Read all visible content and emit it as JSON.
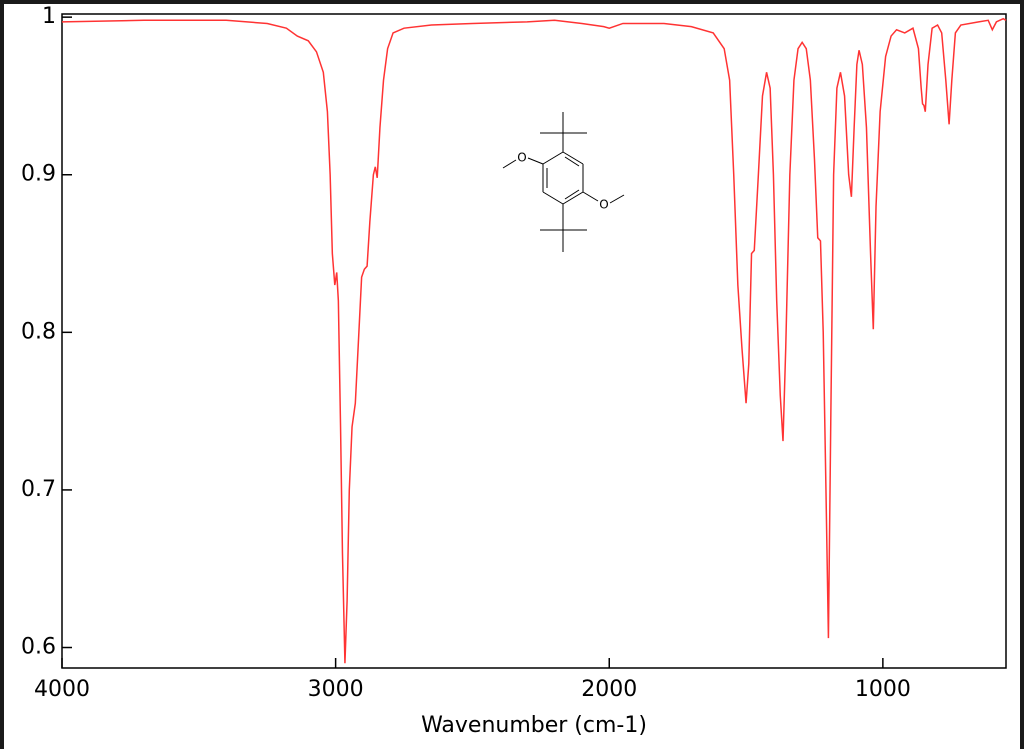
{
  "chart_data": {
    "type": "line",
    "xlabel": "Wavenumber (cm-1)",
    "annotations": [
      "O",
      "O"
    ],
    "xlim": [
      4000,
      550
    ],
    "xticks": [
      4000,
      3000,
      2000,
      1000
    ],
    "ylim": [
      0.587,
      1.002
    ],
    "yticks": [
      0.6,
      0.7,
      0.8,
      0.9,
      1
    ],
    "grid": false,
    "x": [
      4000,
      3700,
      3400,
      3250,
      3180,
      3140,
      3100,
      3070,
      3045,
      3030,
      3020,
      3012,
      3003,
      2996,
      2990,
      2982,
      2975,
      2966,
      2958,
      2950,
      2940,
      2928,
      2915,
      2905,
      2895,
      2885,
      2875,
      2862,
      2855,
      2848,
      2838,
      2825,
      2810,
      2790,
      2750,
      2650,
      2500,
      2300,
      2200,
      2100,
      2020,
      2000,
      1950,
      1800,
      1700,
      1620,
      1580,
      1560,
      1545,
      1530,
      1515,
      1500,
      1490,
      1480,
      1470,
      1455,
      1440,
      1425,
      1412,
      1400,
      1388,
      1375,
      1365,
      1355,
      1340,
      1325,
      1310,
      1295,
      1280,
      1265,
      1250,
      1238,
      1228,
      1218,
      1208,
      1199,
      1190,
      1180,
      1168,
      1155,
      1140,
      1125,
      1115,
      1105,
      1095,
      1087,
      1075,
      1060,
      1045,
      1035,
      1025,
      1010,
      990,
      970,
      950,
      920,
      890,
      870,
      860,
      855,
      850,
      845,
      835,
      820,
      800,
      785,
      770,
      758,
      748,
      735,
      715,
      650,
      615,
      600,
      585,
      560,
      550
    ],
    "series": [
      {
        "color": "#ff3333",
        "values": [
          0.997,
          0.998,
          0.998,
          0.996,
          0.993,
          0.988,
          0.985,
          0.978,
          0.965,
          0.94,
          0.9,
          0.85,
          0.83,
          0.838,
          0.82,
          0.74,
          0.66,
          0.59,
          0.63,
          0.7,
          0.74,
          0.755,
          0.8,
          0.835,
          0.84,
          0.842,
          0.87,
          0.9,
          0.905,
          0.898,
          0.93,
          0.96,
          0.98,
          0.99,
          0.993,
          0.995,
          0.996,
          0.997,
          0.998,
          0.996,
          0.994,
          0.993,
          0.996,
          0.996,
          0.994,
          0.99,
          0.98,
          0.96,
          0.9,
          0.83,
          0.79,
          0.755,
          0.78,
          0.85,
          0.852,
          0.9,
          0.95,
          0.965,
          0.955,
          0.9,
          0.82,
          0.76,
          0.731,
          0.79,
          0.9,
          0.96,
          0.98,
          0.984,
          0.98,
          0.96,
          0.91,
          0.86,
          0.858,
          0.8,
          0.7,
          0.606,
          0.75,
          0.9,
          0.955,
          0.965,
          0.95,
          0.9,
          0.886,
          0.93,
          0.97,
          0.979,
          0.97,
          0.93,
          0.85,
          0.802,
          0.88,
          0.94,
          0.975,
          0.988,
          0.992,
          0.99,
          0.993,
          0.98,
          0.955,
          0.945,
          0.944,
          0.94,
          0.97,
          0.993,
          0.995,
          0.99,
          0.96,
          0.932,
          0.96,
          0.99,
          0.995,
          0.997,
          0.998,
          0.992,
          0.997,
          0.999,
          0.998
        ]
      }
    ]
  }
}
